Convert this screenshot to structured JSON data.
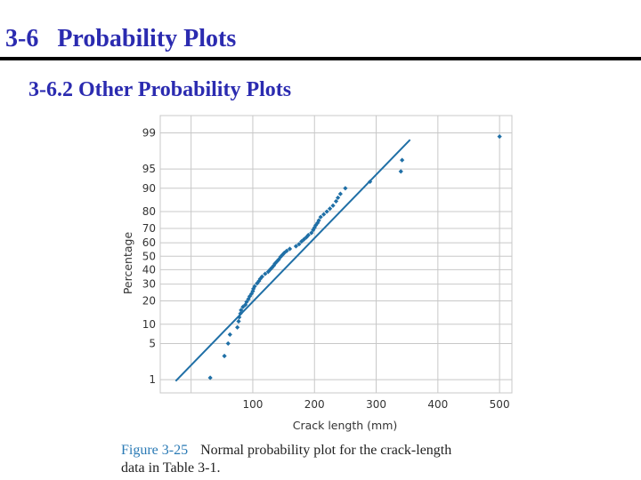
{
  "slide": {
    "title": "3-6   Probability Plots",
    "subtitle": "3-6.2 Other Probability Plots"
  },
  "figure": {
    "number": "Figure 3-25",
    "caption_line1": "Normal probability plot for the crack-length",
    "caption_line2": "data in Table 3-1."
  },
  "colors": {
    "title": "#2b2bb0",
    "series": "#1f6fa6",
    "grid": "#c8c8c8",
    "figure_number": "#2a7ab5"
  },
  "chart_data": {
    "type": "scatter",
    "title": "",
    "xlabel": "Crack length (mm)",
    "ylabel": "Percentage",
    "xlim": [
      -50,
      520
    ],
    "ylim_percent": [
      0.5,
      99.6
    ],
    "y_scale": "normal-probability",
    "grid": true,
    "x_ticks": [
      0,
      100,
      200,
      300,
      400,
      500
    ],
    "x_tick_labels": [
      "",
      "100",
      "200",
      "300",
      "400",
      "500"
    ],
    "y_ticks": [
      1,
      5,
      10,
      20,
      30,
      40,
      50,
      60,
      70,
      80,
      90,
      95,
      99
    ],
    "y_tick_labels": [
      "1",
      "5",
      "10",
      "20",
      "30",
      "40",
      "50",
      "60",
      "70",
      "80",
      "90",
      "95",
      "99"
    ],
    "fit_line": {
      "x": [
        -25,
        355
      ],
      "y_percent": [
        0.93,
        98.6
      ]
    },
    "points": {
      "x": [
        31,
        54,
        60,
        63,
        75,
        77,
        78,
        80,
        81,
        84,
        88,
        90,
        93,
        95,
        98,
        100,
        101,
        103,
        107,
        110,
        112,
        115,
        120,
        125,
        128,
        131,
        134,
        136,
        139,
        142,
        145,
        148,
        151,
        155,
        160,
        170,
        175,
        179,
        183,
        187,
        190,
        195,
        198,
        200,
        202,
        205,
        207,
        210,
        215,
        220,
        225,
        230,
        235,
        238,
        242,
        250,
        290,
        340,
        342,
        500
      ],
      "y": [
        1.1,
        3.0,
        5.0,
        7.0,
        9.0,
        11.0,
        12.5,
        14.0,
        15.5,
        17.0,
        18.0,
        19.5,
        21.0,
        22.5,
        24.0,
        25.5,
        27.0,
        28.5,
        30.5,
        32.0,
        33.5,
        35.0,
        37.0,
        38.5,
        40.0,
        41.5,
        43.0,
        44.5,
        46.0,
        47.5,
        49.5,
        51.0,
        52.5,
        54.0,
        55.5,
        57.5,
        59.0,
        61.0,
        62.5,
        64.0,
        65.5,
        67.0,
        69.0,
        70.5,
        72.0,
        73.5,
        75.0,
        77.0,
        78.5,
        80.0,
        81.5,
        83.0,
        85.0,
        86.5,
        88.0,
        90.0,
        92.0,
        94.5,
        96.5,
        98.8
      ]
    }
  }
}
